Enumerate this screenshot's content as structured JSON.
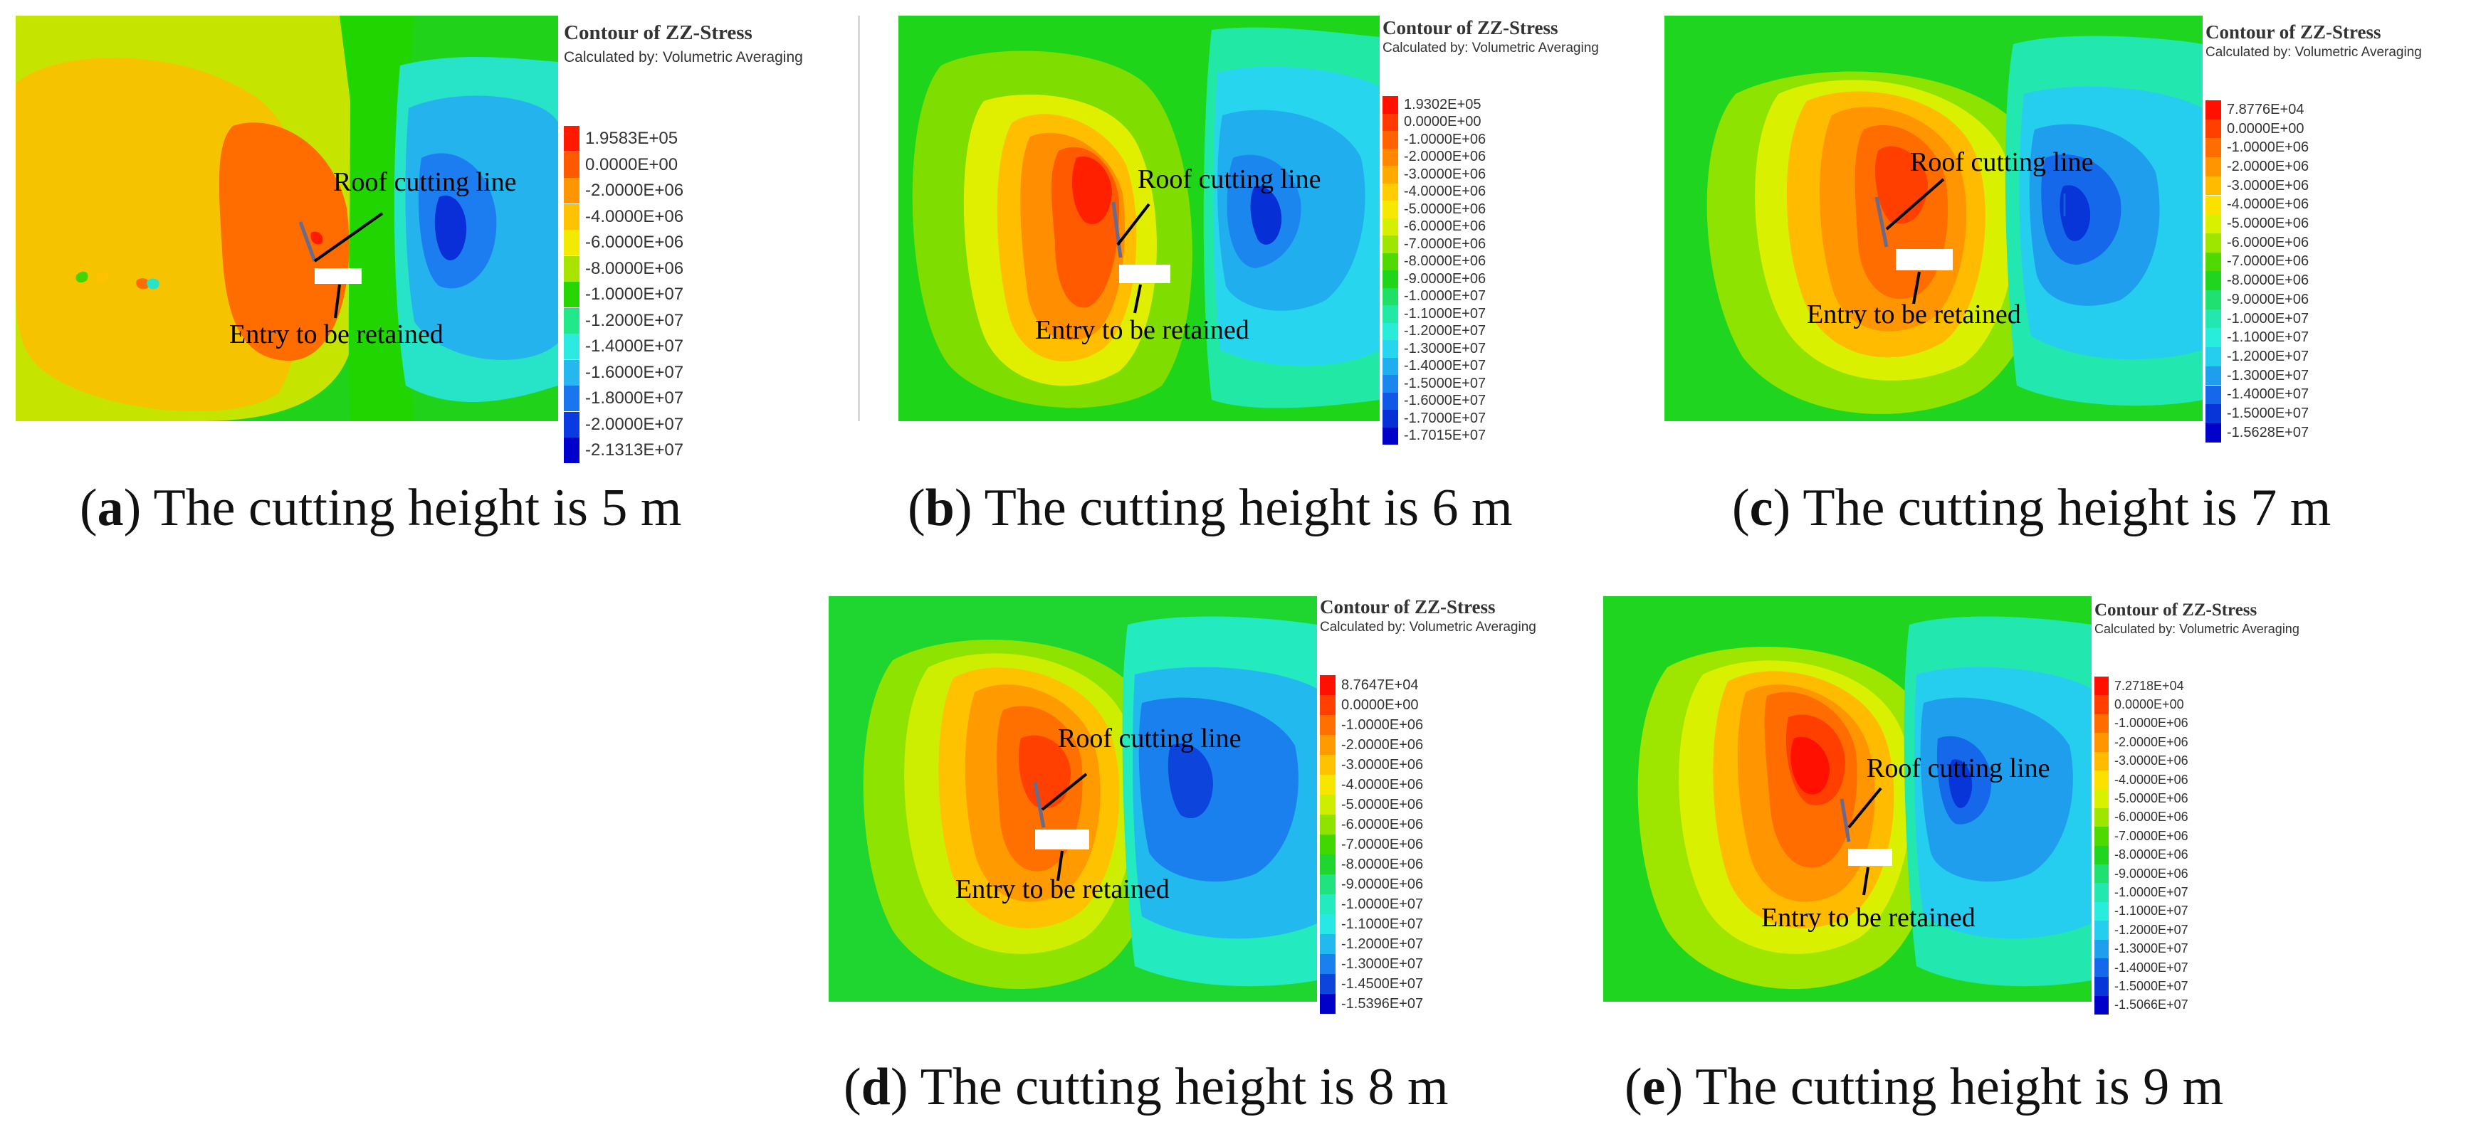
{
  "figure": {
    "legend_title": "Contour of ZZ-Stress",
    "legend_subtitle": "Calculated by: Volumetric Averaging",
    "label_roof": "Roof cutting line",
    "label_entry": "Entry to be retained",
    "panels": [
      {
        "id": "a",
        "letter": "a",
        "caption": " The cutting height is 5 m",
        "legend_values": [
          "1.9583E+05",
          "0.0000E+00",
          "-2.0000E+06",
          "-4.0000E+06",
          "-6.0000E+06",
          "-8.0000E+06",
          "-1.0000E+07",
          "-1.2000E+07",
          "-1.4000E+07",
          "-1.6000E+07",
          "-1.8000E+07",
          "-2.0000E+07",
          "-2.1313E+07"
        ],
        "legend_colors": [
          "#ff1a00",
          "#ff5a00",
          "#ff9500",
          "#ffc200",
          "#f2ea00",
          "#a8e400",
          "#27d500",
          "#23e88a",
          "#2ceadf",
          "#25b8ee",
          "#1976ee",
          "#0a3be0",
          "#0000cc"
        ]
      },
      {
        "id": "b",
        "letter": "b",
        "caption": " The cutting height is 6 m",
        "legend_values": [
          "1.9302E+05",
          "0.0000E+00",
          "-1.0000E+06",
          "-2.0000E+06",
          "-3.0000E+06",
          "-4.0000E+06",
          "-5.0000E+06",
          "-6.0000E+06",
          "-7.0000E+06",
          "-8.0000E+06",
          "-9.0000E+06",
          "-1.0000E+07",
          "-1.1000E+07",
          "-1.2000E+07",
          "-1.3000E+07",
          "-1.4000E+07",
          "-1.5000E+07",
          "-1.6000E+07",
          "-1.7000E+07",
          "-1.7015E+07"
        ],
        "legend_colors": [
          "#ff1000",
          "#ff3a00",
          "#ff6200",
          "#ff8800",
          "#ffaa00",
          "#ffcc00",
          "#f7e800",
          "#d4f000",
          "#9ee600",
          "#4fd900",
          "#1fd51a",
          "#1fe066",
          "#22e8a6",
          "#28ecd8",
          "#27d6ee",
          "#20aeee",
          "#1a86ee",
          "#1059e6",
          "#0630d6",
          "#0000c8"
        ]
      },
      {
        "id": "c",
        "letter": "c",
        "caption": " The cutting height is 7 m",
        "legend_values": [
          "7.8776E+04",
          "0.0000E+00",
          "-1.0000E+06",
          "-2.0000E+06",
          "-3.0000E+06",
          "-4.0000E+06",
          "-5.0000E+06",
          "-6.0000E+06",
          "-7.0000E+06",
          "-8.0000E+06",
          "-9.0000E+06",
          "-1.0000E+07",
          "-1.1000E+07",
          "-1.2000E+07",
          "-1.3000E+07",
          "-1.4000E+07",
          "-1.5000E+07",
          "-1.5628E+07"
        ],
        "legend_colors": [
          "#ff1000",
          "#ff3f00",
          "#ff6c00",
          "#ff9500",
          "#ffbb00",
          "#fbe000",
          "#d9f000",
          "#9ee600",
          "#4fd900",
          "#1fd520",
          "#1fe070",
          "#22e8b0",
          "#28ecdc",
          "#25ceee",
          "#1f9eee",
          "#1568ea",
          "#0835d8",
          "#0000c8"
        ]
      },
      {
        "id": "d",
        "letter": "d",
        "caption": " The cutting height is 8 m",
        "legend_values": [
          "8.7647E+04",
          "0.0000E+00",
          "-1.0000E+06",
          "-2.0000E+06",
          "-3.0000E+06",
          "-4.0000E+06",
          "-5.0000E+06",
          "-6.0000E+06",
          "-7.0000E+06",
          "-8.0000E+06",
          "-9.0000E+06",
          "-1.0000E+07",
          "-1.1000E+07",
          "-1.2000E+07",
          "-1.3000E+07",
          "-1.4500E+07",
          "-1.5396E+07"
        ],
        "legend_colors": [
          "#ff1000",
          "#ff4000",
          "#ff7000",
          "#ff9a00",
          "#ffc200",
          "#f7e600",
          "#cdee00",
          "#8fe300",
          "#40d800",
          "#1fd530",
          "#20e27e",
          "#24eac0",
          "#28e8e6",
          "#22baee",
          "#1a80ee",
          "#0c44dc",
          "#0000c8"
        ]
      },
      {
        "id": "e",
        "letter": "e",
        "caption": " The cutting height is 9 m",
        "legend_values": [
          "7.2718E+04",
          "0.0000E+00",
          "-1.0000E+06",
          "-2.0000E+06",
          "-3.0000E+06",
          "-4.0000E+06",
          "-5.0000E+06",
          "-6.0000E+06",
          "-7.0000E+06",
          "-8.0000E+06",
          "-9.0000E+06",
          "-1.0000E+07",
          "-1.1000E+07",
          "-1.2000E+07",
          "-1.3000E+07",
          "-1.4000E+07",
          "-1.5000E+07",
          "-1.5066E+07"
        ],
        "legend_colors": [
          "#ff1000",
          "#ff3f00",
          "#ff6c00",
          "#ff9500",
          "#ffbb00",
          "#fbe000",
          "#d9f000",
          "#9ee600",
          "#4fd900",
          "#1fd520",
          "#1fe070",
          "#22e8b0",
          "#28ecdc",
          "#25ceee",
          "#1f9eee",
          "#1568ea",
          "#0835d8",
          "#0000c8"
        ]
      }
    ]
  }
}
